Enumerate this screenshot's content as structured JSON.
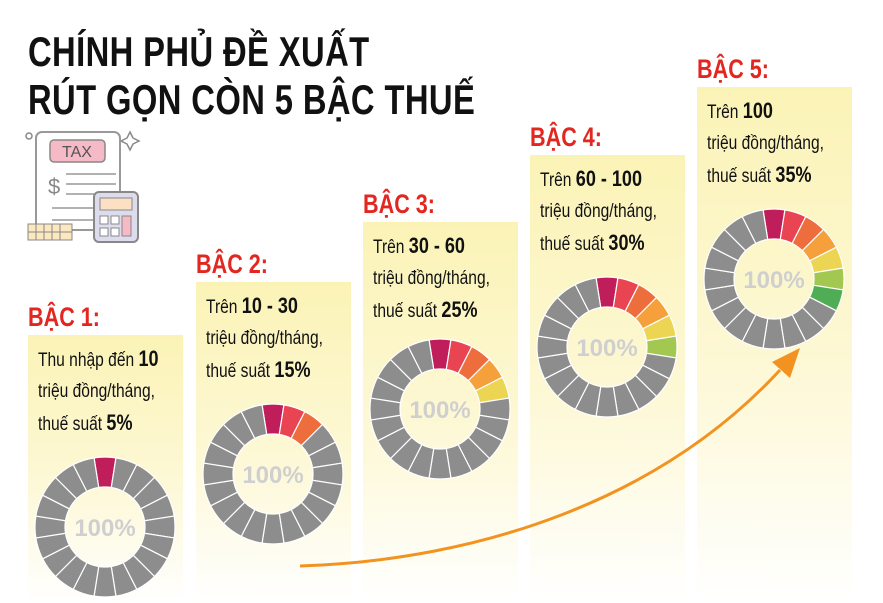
{
  "title": {
    "line1": "CHÍNH PHỦ ĐỀ XUẤT",
    "line2": "RÚT GỌN CÒN 5 BẬC THUẾ"
  },
  "icon": {
    "name": "tax-document-calculator-icon",
    "label": "TAX"
  },
  "center_label": "100%",
  "colors": {
    "segment_gray": "#8d8d8d",
    "step_label": "#e3261f",
    "arrow": "#f29321",
    "segments": [
      "#c01e5a",
      "#e94452",
      "#ee6d3d",
      "#f5a03b",
      "#ebd553",
      "#a3c852",
      "#4fae55"
    ]
  },
  "tiers": [
    {
      "label": "BẬC 1:",
      "line1_pre": "Thu nhập đến ",
      "line1_bold": "10",
      "line2": "triệu đồng/tháng,",
      "line3_pre": "thuế suất ",
      "rate": "5%",
      "rate_value": 5
    },
    {
      "label": "BẬC 2:",
      "line1_pre": "Trên ",
      "line1_bold": "10 - 30",
      "line2": "triệu đồng/tháng,",
      "line3_pre": "thuế suất ",
      "rate": "15%",
      "rate_value": 15
    },
    {
      "label": "BẬC 3:",
      "line1_pre": "Trên ",
      "line1_bold": "30 - 60",
      "line2": "triệu đồng/tháng,",
      "line3_pre": "thuế suất ",
      "rate": "25%",
      "rate_value": 25
    },
    {
      "label": "BẬC 4:",
      "line1_pre": "Trên ",
      "line1_bold": "60 - 100",
      "line2": "triệu đồng/tháng,",
      "line3_pre": "thuế suất ",
      "rate": "30%",
      "rate_value": 30
    },
    {
      "label": "BẬC 5:",
      "line1_pre": "Trên ",
      "line1_bold": "100",
      "line2": "triệu đồng/tháng,",
      "line3_pre": "thuế suất ",
      "rate": "35%",
      "rate_value": 35
    }
  ]
}
